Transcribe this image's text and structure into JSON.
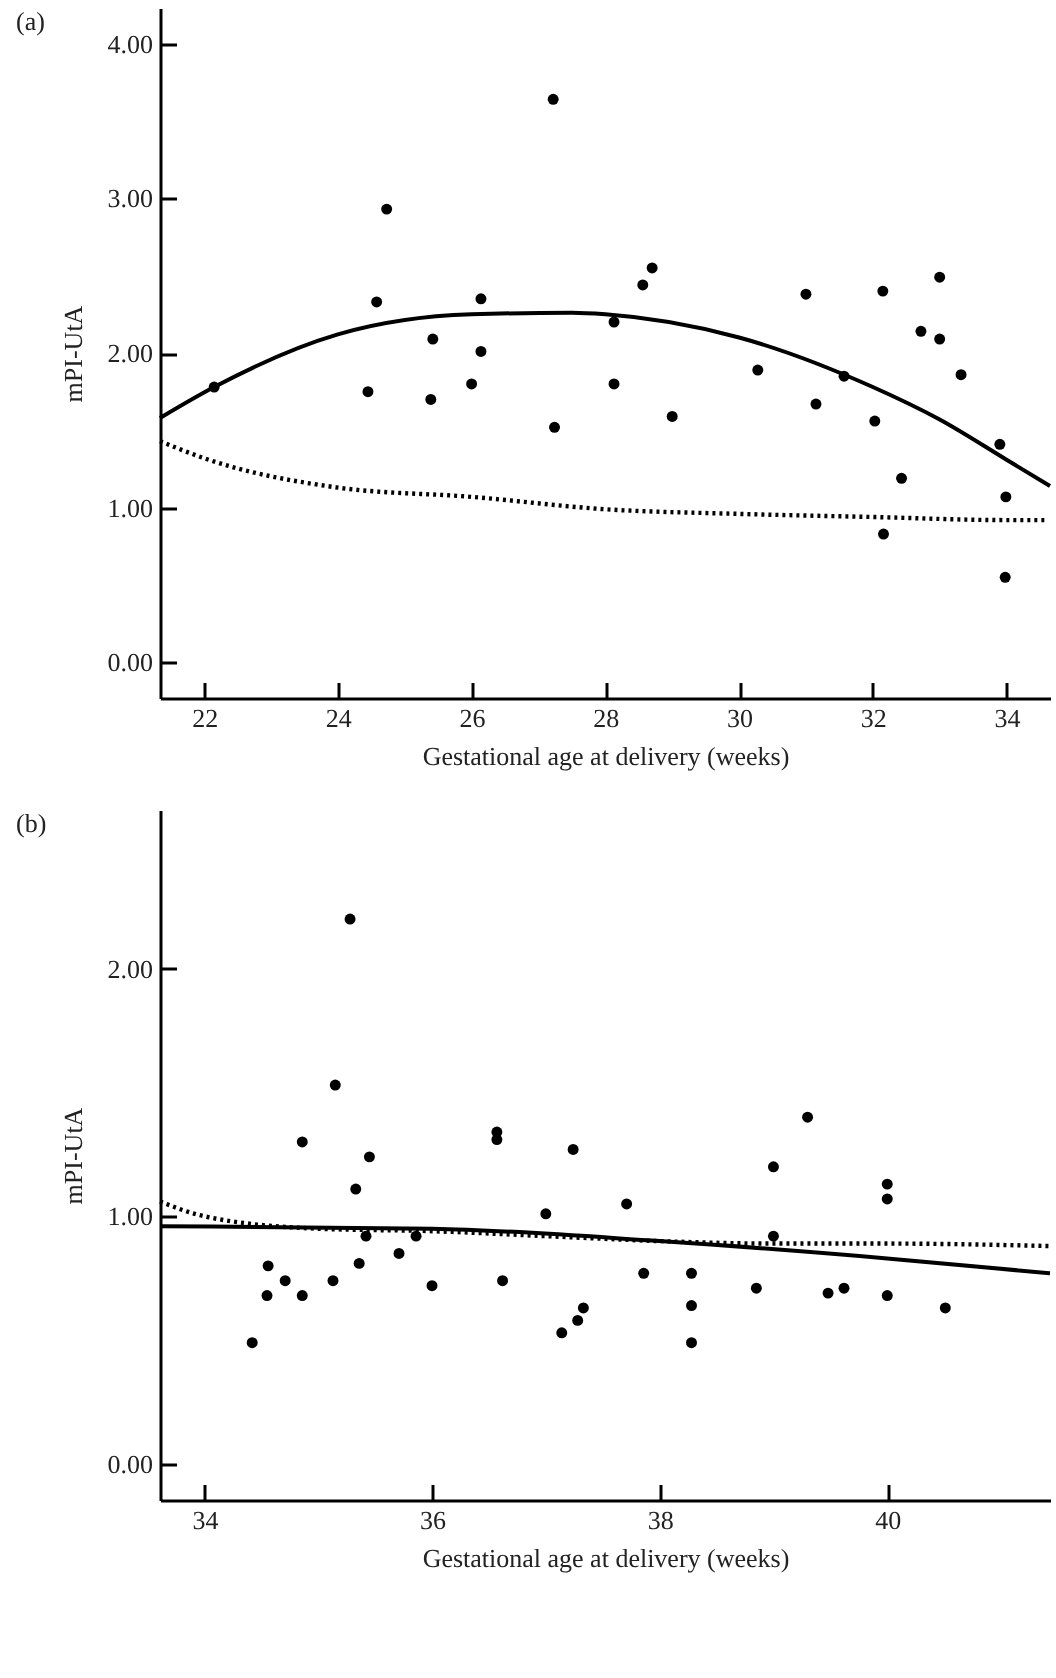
{
  "chart_data": [
    {
      "type": "scatter",
      "title": "(a)",
      "xlabel": "Gestational age at delivery (weeks)",
      "ylabel": "mPI-UtA",
      "xlim": [
        21.34,
        34.65
      ],
      "ylim": [
        -0.23,
        4.23
      ],
      "xticks": [
        22,
        24,
        26,
        28,
        30,
        32,
        34
      ],
      "yticks": [
        {
          "value": 0,
          "label": "0.00"
        },
        {
          "value": 1,
          "label": "1.00"
        },
        {
          "value": 2,
          "label": "2.00"
        },
        {
          "value": 3,
          "label": "3.00"
        },
        {
          "value": 4,
          "label": "4.00"
        }
      ],
      "series": [
        {
          "color": "#000000",
          "marker": "circle",
          "x": [
            22.15,
            24.45,
            24.58,
            24.73,
            25.39,
            25.42,
            26.0,
            26.14,
            26.14,
            27.22,
            27.24,
            28.13,
            28.13,
            28.56,
            28.7,
            29.0,
            30.28,
            31.0,
            31.15,
            31.57,
            32.03,
            32.15,
            32.16,
            32.43,
            32.72,
            33.0,
            33.0,
            33.32,
            33.9,
            33.99,
            33.98
          ],
          "values": [
            1.78,
            1.75,
            2.33,
            2.93,
            1.7,
            2.09,
            1.8,
            2.35,
            2.01,
            3.64,
            1.52,
            2.2,
            1.8,
            2.44,
            2.55,
            1.59,
            1.89,
            2.38,
            1.67,
            1.85,
            1.56,
            2.4,
            0.83,
            1.19,
            2.14,
            2.49,
            2.09,
            1.86,
            1.41,
            1.07,
            0.55
          ]
        },
        {
          "type": "line",
          "color": "#000000",
          "line_style": "solid",
          "x": [
            21.34,
            22.15,
            24,
            26,
            27.5,
            28,
            30,
            32,
            33,
            34,
            34.65
          ],
          "values": [
            1.58,
            1.78,
            2.12,
            2.25,
            2.26,
            2.25,
            2.1,
            1.78,
            1.57,
            1.31,
            1.14
          ]
        },
        {
          "type": "line",
          "color": "#000000",
          "line_style": "dotted",
          "x": [
            21.34,
            22,
            24,
            26,
            28,
            30,
            32,
            34,
            34.6
          ],
          "values": [
            1.43,
            1.32,
            1.13,
            1.07,
            0.99,
            0.96,
            0.94,
            0.92,
            0.92
          ]
        }
      ]
    },
    {
      "type": "scatter",
      "title": "(b)",
      "xlabel": "Gestational age at delivery (weeks)",
      "ylabel": "mPI-UtA",
      "xlim": [
        33.61,
        41.43
      ],
      "ylim": [
        -0.145,
        2.64
      ],
      "xticks": [
        34,
        36,
        38,
        40
      ],
      "yticks": [
        {
          "value": 0,
          "label": "0.00"
        },
        {
          "value": 1,
          "label": "1.00"
        },
        {
          "value": 2,
          "label": "2.00"
        }
      ],
      "series": [
        {
          "color": "#000000",
          "marker": "circle",
          "x": [
            34.42,
            34.56,
            34.55,
            34.71,
            34.86,
            34.86,
            35.13,
            35.15,
            35.28,
            35.33,
            35.36,
            35.42,
            35.45,
            35.71,
            35.86,
            36.0,
            36.57,
            36.57,
            36.62,
            37.0,
            37.14,
            37.24,
            37.28,
            37.33,
            37.71,
            37.86,
            38.28,
            38.28,
            38.28,
            38.85,
            39.0,
            39.0,
            39.3,
            39.48,
            39.62,
            40.0,
            40.0,
            40.0,
            40.51
          ],
          "values": [
            0.49,
            0.8,
            0.68,
            0.74,
            1.3,
            0.68,
            0.74,
            1.53,
            2.2,
            1.11,
            0.81,
            0.92,
            1.24,
            0.85,
            0.92,
            0.72,
            1.34,
            1.31,
            0.74,
            1.01,
            0.53,
            1.27,
            0.58,
            0.63,
            1.05,
            0.77,
            0.77,
            0.64,
            0.49,
            0.71,
            1.2,
            0.92,
            1.4,
            0.69,
            0.71,
            1.13,
            1.07,
            0.68,
            0.63
          ]
        },
        {
          "type": "line",
          "color": "#000000",
          "line_style": "solid",
          "x": [
            33.61,
            36,
            38,
            40,
            41.43
          ],
          "values": [
            0.96,
            0.95,
            0.9,
            0.83,
            0.77
          ]
        },
        {
          "type": "line",
          "color": "#000000",
          "line_style": "dotted",
          "x": [
            33.61,
            34,
            35,
            36,
            37,
            38,
            39,
            40,
            41.43
          ],
          "values": [
            1.06,
            1.0,
            0.95,
            0.94,
            0.92,
            0.9,
            0.89,
            0.89,
            0.88
          ]
        }
      ]
    }
  ]
}
